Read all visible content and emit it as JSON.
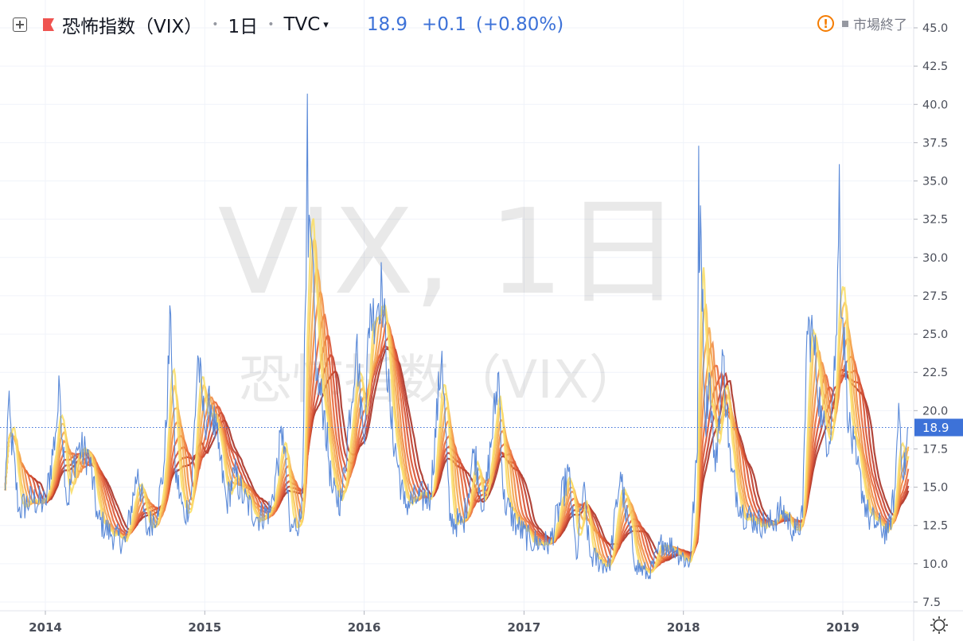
{
  "header": {
    "symbol_name": "恐怖指数（VIX）",
    "interval": "1日",
    "exchange": "TVC",
    "last_price": "18.9",
    "change": "+0.1",
    "change_pct": "(+0.80%)",
    "market_status": "市場終了"
  },
  "watermark": {
    "line1": "VIX, 1日",
    "line2": "恐怖指数（VIX）"
  },
  "colors": {
    "price_line": "#5b8ad8",
    "last_price_label": "#3d72d8",
    "ribbon": [
      "#a83226",
      "#c23e2c",
      "#d85232",
      "#e8683a",
      "#f08a44",
      "#f5a84f",
      "#f8c45c",
      "#fadf6a"
    ]
  },
  "chart_data": {
    "type": "line",
    "title": "恐怖指数（VIX）",
    "ylim": [
      7.5,
      45.0
    ],
    "y_ticks": [
      "7.5",
      "10.0",
      "12.5",
      "15.0",
      "17.5",
      "20.0",
      "22.5",
      "25.0",
      "27.5",
      "30.0",
      "32.5",
      "35.0",
      "37.5",
      "40.0",
      "42.5",
      "45.0"
    ],
    "x_ticks": [
      "2014",
      "2015",
      "2016",
      "2017",
      "2018",
      "2019"
    ],
    "last_value": 18.9,
    "series": [
      {
        "x": [
          "2013-10-01",
          "2013-10-08",
          "2013-11-01",
          "2013-12-01",
          "2014-01-01",
          "2014-01-24",
          "2014-02-03",
          "2014-02-20",
          "2014-03-14",
          "2014-04-11",
          "2014-05-01",
          "2014-06-01",
          "2014-07-03",
          "2014-08-01",
          "2014-08-20",
          "2014-09-15",
          "2014-10-01",
          "2014-10-15",
          "2014-10-25",
          "2014-11-15",
          "2014-12-01",
          "2014-12-16",
          "2014-12-31",
          "2015-01-15",
          "2015-02-01",
          "2015-02-20",
          "2015-03-10",
          "2015-04-01",
          "2015-05-01",
          "2015-06-01",
          "2015-06-29",
          "2015-07-15",
          "2015-08-10",
          "2015-08-21",
          "2015-08-24",
          "2015-08-26",
          "2015-09-01",
          "2015-09-15",
          "2015-10-01",
          "2015-10-20",
          "2015-11-10",
          "2015-12-14",
          "2015-12-31",
          "2016-01-15",
          "2016-01-20",
          "2016-02-11",
          "2016-03-01",
          "2016-04-01",
          "2016-05-01",
          "2016-06-01",
          "2016-06-27",
          "2016-07-15",
          "2016-08-15",
          "2016-09-09",
          "2016-10-01",
          "2016-11-04",
          "2016-11-15",
          "2016-12-15",
          "2017-01-15",
          "2017-03-01",
          "2017-04-13",
          "2017-05-01",
          "2017-05-17",
          "2017-06-01",
          "2017-07-15",
          "2017-08-10",
          "2017-08-20",
          "2017-09-15",
          "2017-10-15",
          "2017-11-15",
          "2017-12-15",
          "2018-01-15",
          "2018-02-02",
          "2018-02-05",
          "2018-02-06",
          "2018-02-09",
          "2018-02-20",
          "2018-03-01",
          "2018-03-15",
          "2018-04-02",
          "2018-04-20",
          "2018-05-15",
          "2018-06-15",
          "2018-07-15",
          "2018-08-15",
          "2018-09-15",
          "2018-10-01",
          "2018-10-11",
          "2018-10-24",
          "2018-11-15",
          "2018-12-01",
          "2018-12-18",
          "2018-12-24",
          "2018-12-26",
          "2019-01-15",
          "2019-02-01",
          "2019-03-01",
          "2019-03-22",
          "2019-04-15",
          "2019-05-01",
          "2019-05-09",
          "2019-05-20",
          "2019-05-31"
        ],
        "y": [
          14.8,
          20.3,
          13.5,
          14.2,
          13.9,
          18.5,
          21.4,
          13.8,
          17.6,
          17.0,
          12.9,
          11.9,
          11.4,
          16.2,
          12.1,
          13.5,
          16.8,
          26.3,
          16.2,
          13.0,
          14.5,
          23.6,
          19.2,
          20.4,
          17.5,
          14.0,
          15.9,
          14.2,
          13.0,
          13.5,
          18.9,
          12.1,
          13.0,
          28.0,
          40.7,
          30.0,
          31.4,
          22.0,
          20.0,
          14.6,
          14.1,
          24.4,
          18.2,
          27.0,
          26.0,
          28.1,
          19.6,
          13.9,
          14.2,
          14.5,
          23.9,
          12.8,
          12.6,
          17.5,
          13.5,
          22.5,
          14.2,
          12.5,
          11.5,
          11.3,
          16.0,
          10.3,
          15.0,
          10.5,
          9.8,
          16.0,
          13.6,
          9.9,
          9.2,
          11.5,
          10.9,
          10.0,
          17.3,
          37.3,
          29.0,
          33.4,
          19.0,
          22.5,
          16.0,
          23.6,
          16.0,
          13.4,
          12.8,
          12.5,
          13.5,
          12.0,
          13.0,
          25.2,
          25.0,
          19.0,
          18.0,
          25.0,
          36.1,
          29.0,
          19.0,
          16.5,
          13.0,
          12.5,
          12.0,
          15.0,
          20.5,
          15.5,
          18.9
        ]
      }
    ]
  }
}
